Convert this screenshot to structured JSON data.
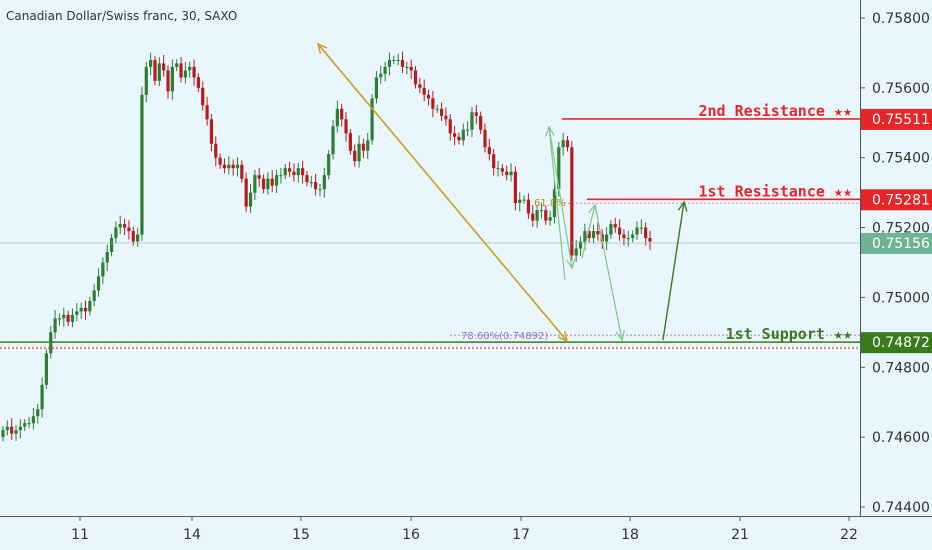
{
  "chart_data": {
    "type": "candlestick",
    "title": "Canadian Dollar/Swiss franc, 30, SAXO",
    "ylim": [
      0.7438,
      0.7588
    ],
    "y_ticks": [
      "0.75800",
      "0.75600",
      "0.75400",
      "0.75200",
      "0.75000",
      "0.74800",
      "0.74600",
      "0.74400"
    ],
    "x_ticks": [
      "11",
      "14",
      "15",
      "16",
      "17",
      "18",
      "21",
      "22"
    ],
    "current_price": "0.75156",
    "levels": [
      {
        "name": "2nd Resistance ★★",
        "value": "0.75511",
        "color": "#e8262a"
      },
      {
        "name": "1st Resistance ★★",
        "value": "0.75281",
        "color": "#e8262a"
      },
      {
        "name": "1st Support ★★",
        "value": "0.74872",
        "color": "#3a7a1c"
      }
    ],
    "fib_labels": [
      "61.8%",
      "78.60%(0.74892)"
    ],
    "path_close": [
      0.7462,
      0.7463,
      0.7461,
      0.7462,
      0.7463,
      0.7464,
      0.7464,
      0.7466,
      0.7468,
      0.7475,
      0.7484,
      0.749,
      0.7494,
      0.7494,
      0.7495,
      0.7493,
      0.7495,
      0.7496,
      0.7497,
      0.7496,
      0.7499,
      0.7502,
      0.7506,
      0.751,
      0.7513,
      0.7517,
      0.752,
      0.7521,
      0.752,
      0.7519,
      0.7516,
      0.7518,
      0.7558,
      0.7566,
      0.7568,
      0.7562,
      0.7567,
      0.7565,
      0.7559,
      0.7566,
      0.7567,
      0.7563,
      0.7565,
      0.7566,
      0.7563,
      0.756,
      0.7555,
      0.7551,
      0.7544,
      0.754,
      0.7538,
      0.7537,
      0.7538,
      0.7537,
      0.7538,
      0.7534,
      0.7526,
      0.753,
      0.7535,
      0.7534,
      0.7531,
      0.7534,
      0.7532,
      0.7535,
      0.7535,
      0.7537,
      0.7536,
      0.7535,
      0.7537,
      0.7535,
      0.7533,
      0.7533,
      0.7531,
      0.7531,
      0.7535,
      0.7541,
      0.7549,
      0.7554,
      0.7551,
      0.7547,
      0.7542,
      0.7539,
      0.7544,
      0.7542,
      0.7545,
      0.7557,
      0.7563,
      0.7564,
      0.7566,
      0.7568,
      0.7568,
      0.7568,
      0.7566,
      0.7566,
      0.7565,
      0.7561,
      0.756,
      0.7558,
      0.7557,
      0.7554,
      0.7554,
      0.7552,
      0.7551,
      0.7547,
      0.7546,
      0.7545,
      0.7548,
      0.7548,
      0.7553,
      0.7552,
      0.7548,
      0.7543,
      0.7541,
      0.7537,
      0.7537,
      0.7536,
      0.7535,
      0.7536,
      0.7527,
      0.7528,
      0.7528,
      0.7524,
      0.7522,
      0.7525,
      0.7525,
      0.7522,
      0.7523,
      0.7531,
      0.7543,
      0.7545,
      0.7543,
      0.7512,
      0.7514,
      0.7516,
      0.7519,
      0.7517,
      0.7519,
      0.7518,
      0.7516,
      0.7518,
      0.7521,
      0.752,
      0.7518,
      0.7517,
      0.7517,
      0.7518,
      0.752,
      0.752,
      0.7517,
      0.7516
    ]
  }
}
